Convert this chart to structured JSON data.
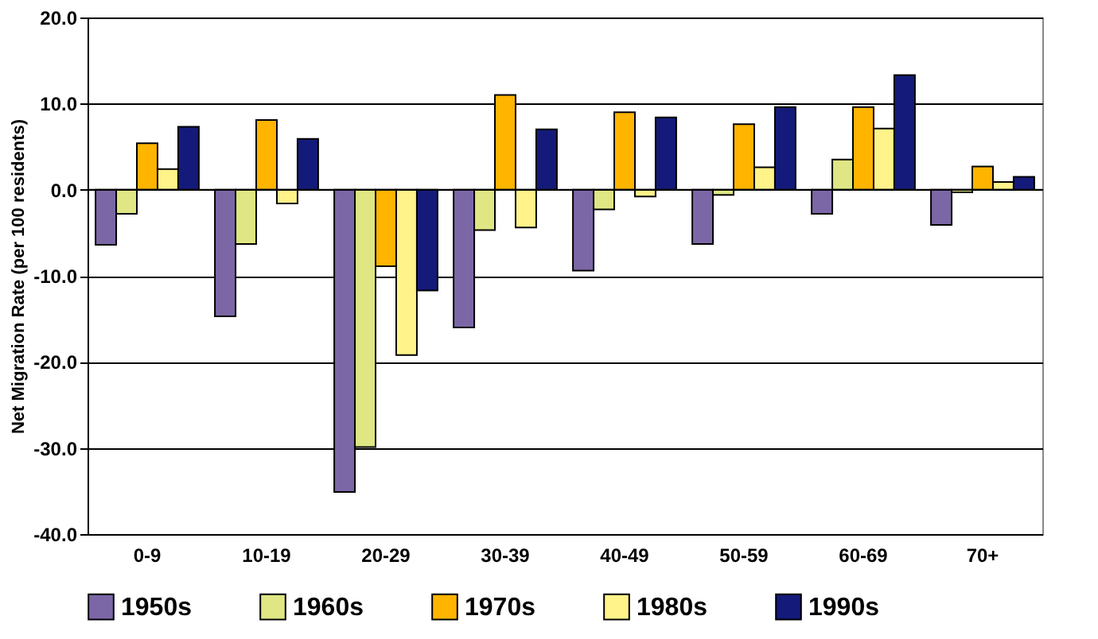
{
  "chart_data": {
    "type": "bar",
    "ylabel": "Net Migration Rate (per 100 residents)",
    "categories": [
      "0-9",
      "10-19",
      "20-29",
      "30-39",
      "40-49",
      "50-59",
      "60-69",
      "70+"
    ],
    "series": [
      {
        "name": "1950s",
        "color": "#7b67a6",
        "values": [
          -6.4,
          -14.7,
          -35.1,
          -16.0,
          -9.4,
          -6.3,
          -2.8,
          -4.1
        ]
      },
      {
        "name": "1960s",
        "color": "#dfe683",
        "values": [
          -2.8,
          -6.3,
          -29.9,
          -4.7,
          -2.3,
          -0.6,
          3.5,
          -0.3
        ]
      },
      {
        "name": "1970s",
        "color": "#ffb400",
        "values": [
          5.4,
          8.1,
          -8.9,
          11.0,
          9.0,
          7.6,
          9.6,
          2.7
        ]
      },
      {
        "name": "1980s",
        "color": "#fff38a",
        "values": [
          2.4,
          -1.6,
          -19.2,
          -4.4,
          -0.8,
          2.6,
          7.1,
          0.9
        ]
      },
      {
        "name": "1990s",
        "color": "#141a7a",
        "values": [
          7.3,
          5.9,
          -11.7,
          7.0,
          8.4,
          9.6,
          13.3,
          1.5
        ]
      }
    ],
    "ylim": [
      -40,
      20
    ],
    "yticks": [
      {
        "value": -40,
        "label": "-40.0"
      },
      {
        "value": -30,
        "label": "-30.0"
      },
      {
        "value": -20,
        "label": "-20.0"
      },
      {
        "value": -10,
        "label": "-10.0"
      },
      {
        "value": 0,
        "label": "0.0"
      },
      {
        "value": 10,
        "label": "10.0"
      },
      {
        "value": 20,
        "label": "20.0"
      }
    ],
    "grid": "y",
    "legend": "bottom"
  }
}
